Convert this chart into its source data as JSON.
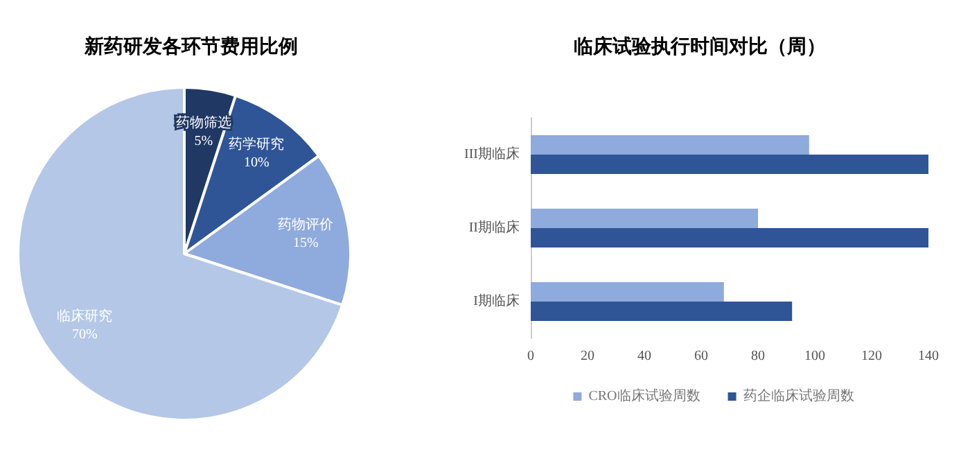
{
  "chart_data": [
    {
      "type": "pie",
      "title": "新药研发各环节费用比例",
      "categories": [
        "药物筛选",
        "药学研究",
        "药物评价",
        "临床研究"
      ],
      "values": [
        5,
        10,
        15,
        70
      ],
      "value_labels": [
        "5%",
        "10%",
        "15%",
        "70%"
      ],
      "colors": [
        "#203864",
        "#2f5597",
        "#8faadc",
        "#b4c7e7"
      ],
      "legend": false
    },
    {
      "type": "bar",
      "orientation": "horizontal",
      "title": "临床试验执行时间对比（周）",
      "categories": [
        "III期临床",
        "II期临床",
        "I期临床"
      ],
      "series": [
        {
          "name": "CRO临床试验周数",
          "color": "#8faadc",
          "values": [
            98,
            80,
            68
          ]
        },
        {
          "name": "药企临床试验周数",
          "color": "#2f5597",
          "values": [
            140,
            140,
            92
          ]
        }
      ],
      "xlim": [
        0,
        140
      ],
      "xticks": [
        0,
        20,
        40,
        60,
        80,
        100,
        120,
        140
      ],
      "grid": false,
      "legend": "bottom"
    }
  ]
}
